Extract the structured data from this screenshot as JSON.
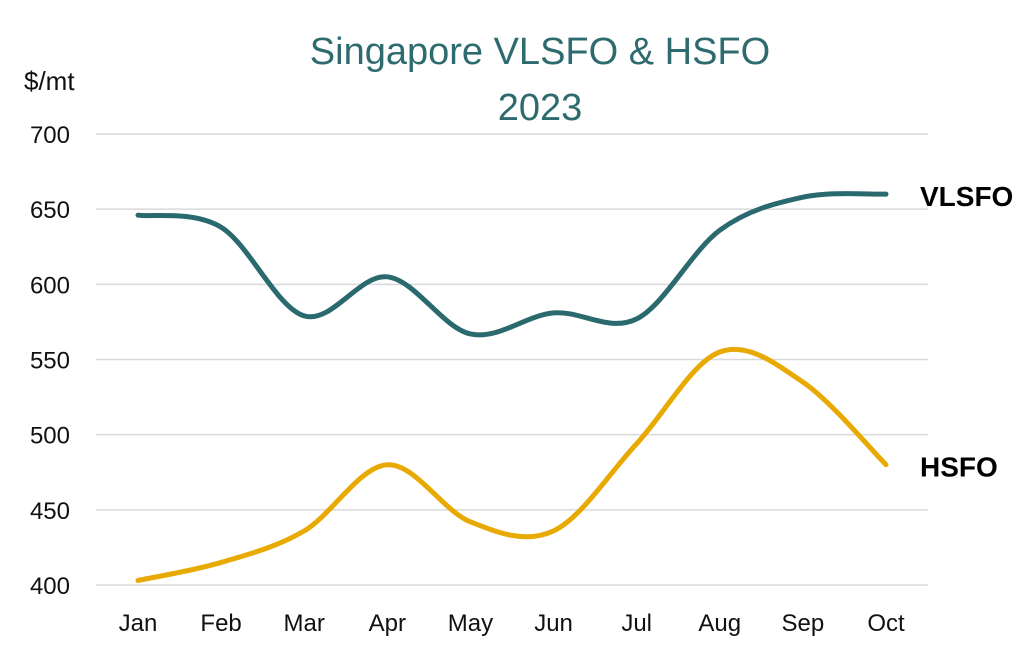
{
  "chart_data": {
    "type": "line",
    "title": "Singapore VLSFO & HSFO",
    "subtitle": "2023",
    "ylabel": "$/mt",
    "xlabel": "",
    "ylim": [
      400,
      700
    ],
    "yticks": [
      "400",
      "450",
      "500",
      "550",
      "600",
      "650",
      "700"
    ],
    "categories": [
      "Jan",
      "Feb",
      "Mar",
      "Apr",
      "May",
      "Jun",
      "Jul",
      "Aug",
      "Sep",
      "Oct"
    ],
    "grid": true,
    "legend": "direct labels at right end of lines",
    "series": [
      {
        "name": "VLSFO",
        "color": "#2a6a6e",
        "values": [
          646,
          638,
          579,
          605,
          567,
          581,
          577,
          636,
          658,
          660
        ]
      },
      {
        "name": "HSFO",
        "color": "#e8a900",
        "values": [
          403,
          415,
          436,
          480,
          442,
          436,
          494,
          555,
          535,
          480
        ]
      }
    ]
  }
}
